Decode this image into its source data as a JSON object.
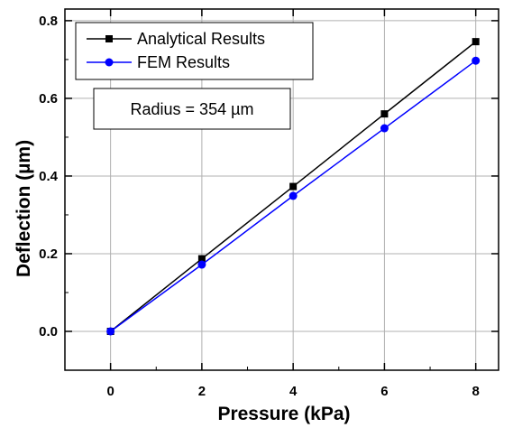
{
  "chart_data": {
    "type": "line",
    "title": "",
    "xlabel": "Pressure (kPa)",
    "ylabel": "Deflection (µm)",
    "xlim": [
      -1,
      8.5
    ],
    "ylim": [
      -0.1,
      0.83
    ],
    "x": [
      0,
      2,
      4,
      6,
      8
    ],
    "xticks": [
      0,
      2,
      4,
      6,
      8
    ],
    "yticks": [
      0.0,
      0.2,
      0.4,
      0.6,
      0.8
    ],
    "xtick_labels": [
      "0",
      "2",
      "4",
      "6",
      "8"
    ],
    "ytick_labels": [
      "0.0",
      "0.2",
      "0.4",
      "0.6",
      "0.8"
    ],
    "grid": true,
    "legend_position": "top-left",
    "series": [
      {
        "name": "Analytical Results",
        "values": [
          0,
          0.187,
          0.373,
          0.56,
          0.746
        ],
        "color": "#000000",
        "marker": "square"
      },
      {
        "name": "FEM Results",
        "values": [
          0,
          0.172,
          0.349,
          0.523,
          0.697
        ],
        "color": "#0000ff",
        "marker": "circle"
      }
    ],
    "annotation": "Radius = 354 µm"
  }
}
